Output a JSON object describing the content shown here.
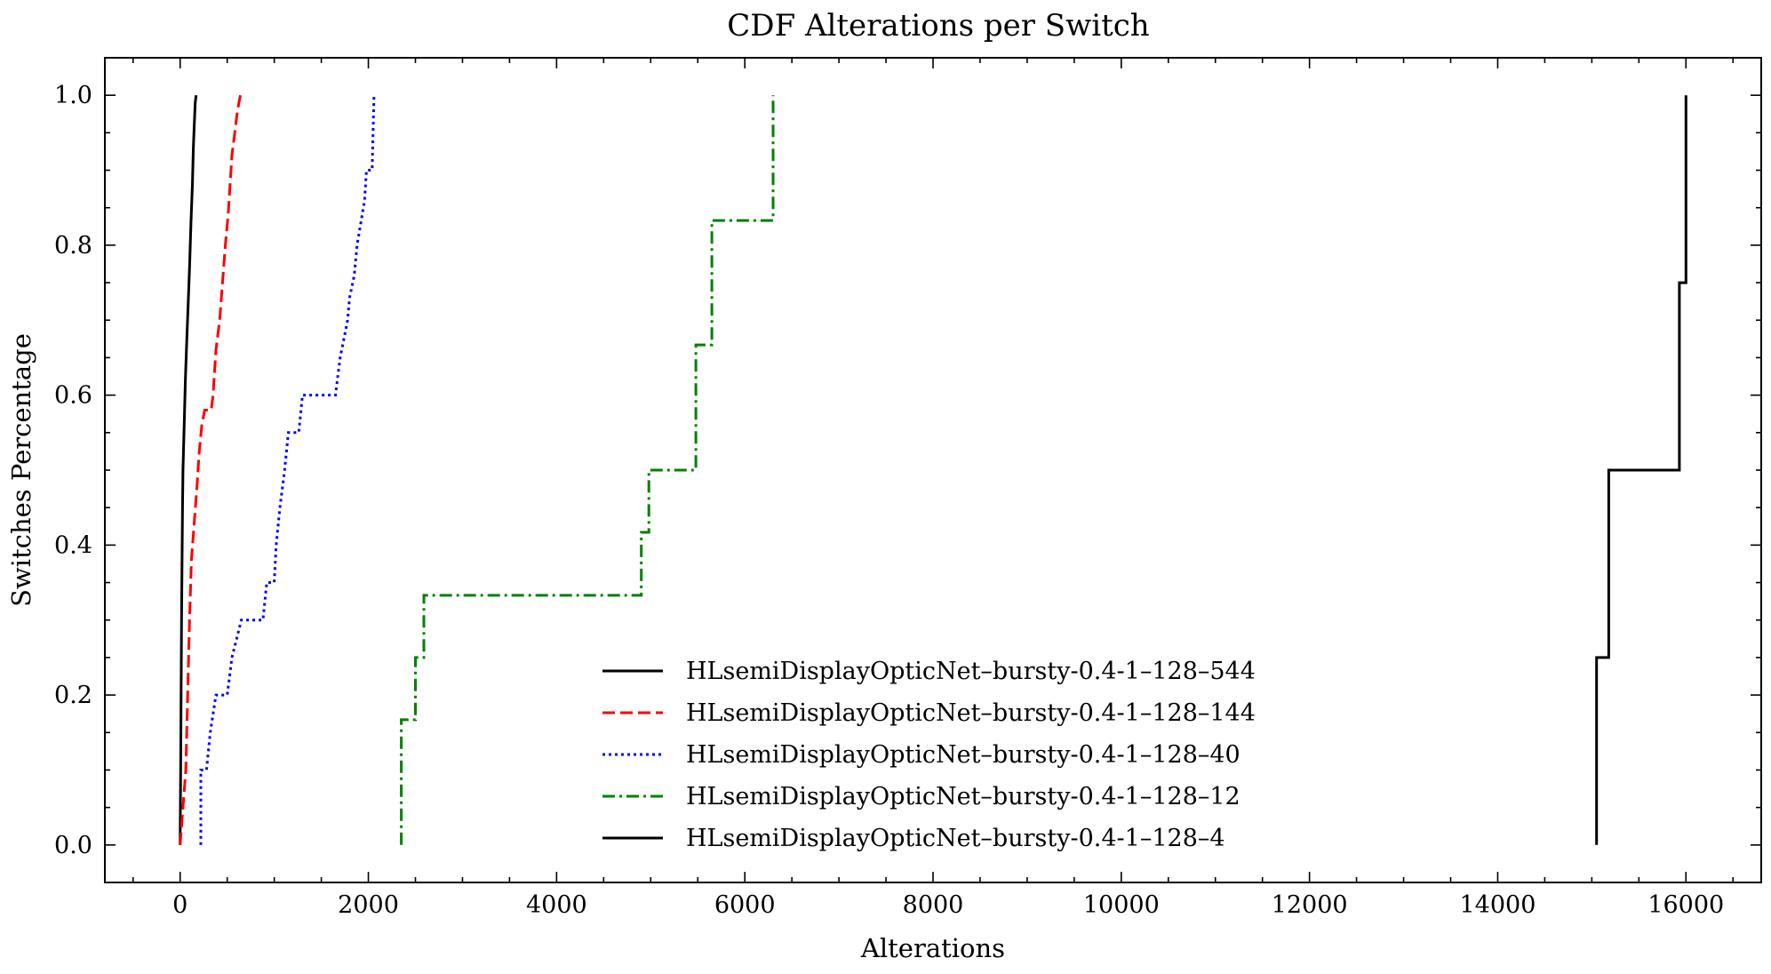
{
  "chart_data": {
    "type": "line",
    "title": "CDF Alterations per Switch",
    "xlabel": "Alterations",
    "ylabel": "Switches Percentage",
    "xlim": [
      -800,
      16800
    ],
    "ylim": [
      -0.05,
      1.05
    ],
    "xticks": [
      0,
      2000,
      4000,
      6000,
      8000,
      10000,
      12000,
      14000,
      16000
    ],
    "xtick_labels": [
      "0",
      "2000",
      "4000",
      "6000",
      "8000",
      "10000",
      "12000",
      "14000",
      "16000"
    ],
    "yticks": [
      0.0,
      0.2,
      0.4,
      0.6,
      0.8,
      1.0
    ],
    "ytick_labels": [
      "0.0",
      "0.2",
      "0.4",
      "0.6",
      "0.8",
      "1.0"
    ],
    "grid": false,
    "legend_position": "lower-center",
    "series": [
      {
        "name": "HLsemiDisplayOpticNet–bursty-0.4-1–128–544",
        "color": "#000000",
        "dash": "solid",
        "points": [
          [
            0,
            0.0
          ],
          [
            5,
            0.1
          ],
          [
            10,
            0.2
          ],
          [
            15,
            0.3
          ],
          [
            20,
            0.37
          ],
          [
            25,
            0.45
          ],
          [
            30,
            0.5
          ],
          [
            45,
            0.57
          ],
          [
            55,
            0.62
          ],
          [
            70,
            0.67
          ],
          [
            85,
            0.72
          ],
          [
            100,
            0.77
          ],
          [
            115,
            0.83
          ],
          [
            130,
            0.88
          ],
          [
            140,
            0.93
          ],
          [
            150,
            0.96
          ],
          [
            160,
            0.99
          ],
          [
            170,
            1.0
          ]
        ]
      },
      {
        "name": "HLsemiDisplayOpticNet–bursty-0.4-1–128–144",
        "color": "#ff0000",
        "dash": "dashed",
        "points": [
          [
            0,
            0.0
          ],
          [
            30,
            0.05
          ],
          [
            60,
            0.1
          ],
          [
            80,
            0.2
          ],
          [
            100,
            0.3
          ],
          [
            120,
            0.38
          ],
          [
            150,
            0.43
          ],
          [
            180,
            0.48
          ],
          [
            200,
            0.52
          ],
          [
            230,
            0.56
          ],
          [
            260,
            0.58
          ],
          [
            330,
            0.58
          ],
          [
            350,
            0.6
          ],
          [
            380,
            0.66
          ],
          [
            420,
            0.7
          ],
          [
            450,
            0.75
          ],
          [
            480,
            0.8
          ],
          [
            510,
            0.84
          ],
          [
            530,
            0.88
          ],
          [
            550,
            0.92
          ],
          [
            580,
            0.95
          ],
          [
            610,
            0.98
          ],
          [
            640,
            1.0
          ]
        ]
      },
      {
        "name": "HLsemiDisplayOpticNet–bursty-0.4-1–128–40",
        "color": "#0000ff",
        "dash": "dotted",
        "points": [
          [
            220,
            0.0
          ],
          [
            220,
            0.1
          ],
          [
            280,
            0.1
          ],
          [
            320,
            0.15
          ],
          [
            380,
            0.2
          ],
          [
            500,
            0.2
          ],
          [
            550,
            0.25
          ],
          [
            650,
            0.3
          ],
          [
            880,
            0.3
          ],
          [
            920,
            0.35
          ],
          [
            1000,
            0.35
          ],
          [
            1020,
            0.4
          ],
          [
            1060,
            0.45
          ],
          [
            1110,
            0.5
          ],
          [
            1150,
            0.55
          ],
          [
            1260,
            0.55
          ],
          [
            1300,
            0.6
          ],
          [
            1650,
            0.6
          ],
          [
            1700,
            0.65
          ],
          [
            1780,
            0.7
          ],
          [
            1800,
            0.73
          ],
          [
            1850,
            0.76
          ],
          [
            1880,
            0.8
          ],
          [
            1920,
            0.83
          ],
          [
            1960,
            0.86
          ],
          [
            1980,
            0.9
          ],
          [
            2040,
            0.9
          ],
          [
            2050,
            0.95
          ],
          [
            2060,
            1.0
          ]
        ]
      },
      {
        "name": "HLsemiDisplayOpticNet–bursty-0.4-1–128–12",
        "color": "#008000",
        "dash": "dashdot",
        "points": [
          [
            2350,
            0.0
          ],
          [
            2350,
            0.167
          ],
          [
            2500,
            0.167
          ],
          [
            2500,
            0.25
          ],
          [
            2590,
            0.25
          ],
          [
            2590,
            0.333
          ],
          [
            4900,
            0.333
          ],
          [
            4900,
            0.417
          ],
          [
            4980,
            0.417
          ],
          [
            4980,
            0.5
          ],
          [
            5480,
            0.5
          ],
          [
            5480,
            0.667
          ],
          [
            5650,
            0.667
          ],
          [
            5650,
            0.833
          ],
          [
            6300,
            0.833
          ],
          [
            6300,
            1.0
          ]
        ]
      },
      {
        "name": "HLsemiDisplayOpticNet–bursty-0.4-1–128–4",
        "color": "#000000",
        "dash": "solid",
        "points": [
          [
            15050,
            0.0
          ],
          [
            15050,
            0.25
          ],
          [
            15180,
            0.25
          ],
          [
            15180,
            0.5
          ],
          [
            15930,
            0.5
          ],
          [
            15930,
            0.75
          ],
          [
            16000,
            0.75
          ],
          [
            16000,
            1.0
          ]
        ]
      }
    ]
  }
}
